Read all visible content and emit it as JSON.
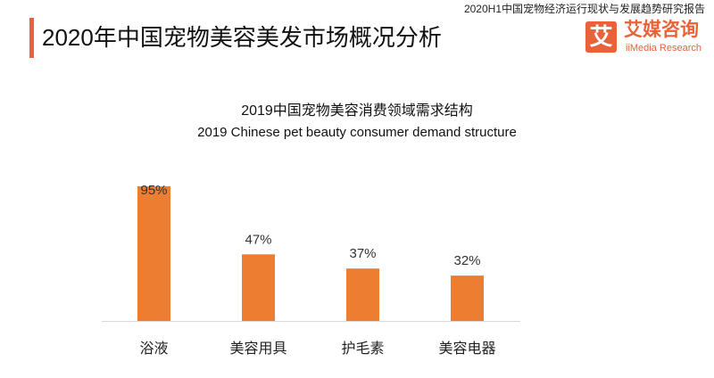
{
  "header": {
    "title": "2020年中国宠物美容美发市场概况分析",
    "report_name": "2020H1中国宠物经济运行现状与发展趋势研究报告",
    "logo_mark": "艾",
    "logo_cn": "艾媒咨询",
    "logo_en": "iiMedia Research"
  },
  "colors": {
    "accent": "#e8623a",
    "bar": "#ed7d31",
    "axis": "#d9d9d9"
  },
  "chart_data": {
    "type": "bar",
    "title": "2019中国宠物美容消费领域需求结构",
    "subtitle": "2019 Chinese pet beauty consumer demand structure",
    "categories": [
      "浴液",
      "美容用具",
      "护毛素",
      "美容电器"
    ],
    "values": [
      95,
      47,
      37,
      32
    ],
    "value_labels": [
      "95%",
      "47%",
      "37%",
      "32%"
    ],
    "unit": "%",
    "ylim": [
      0,
      100
    ],
    "grid": false,
    "legend": "none"
  }
}
